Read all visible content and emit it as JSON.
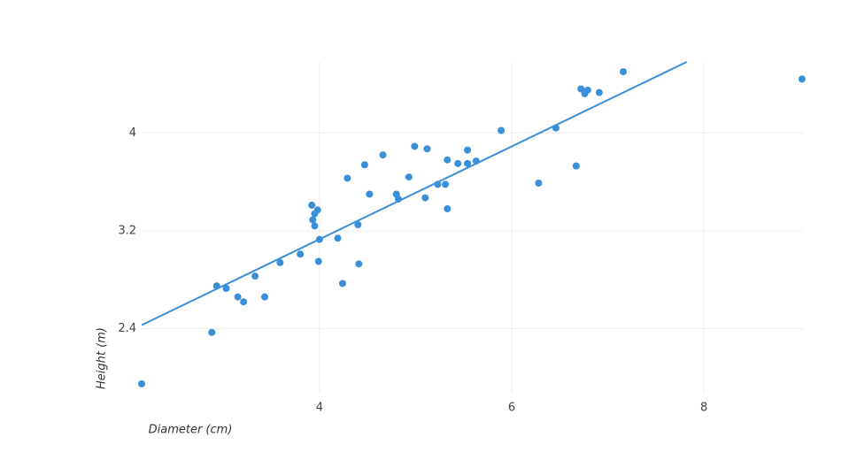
{
  "chart_data": {
    "type": "scatter",
    "x_label": "Diameter (cm)",
    "y_label": "Height (m)",
    "xlim": [
      2.15,
      9.03
    ],
    "ylim": [
      1.87,
      4.58
    ],
    "xticks": [
      4,
      6,
      8
    ],
    "yticks": [
      2.4,
      3.2,
      4
    ],
    "grid": true,
    "series": [
      {
        "color": "#3a8fd9",
        "mode": "markers",
        "x": [
          2.15,
          2.88,
          2.93,
          3.03,
          3.15,
          3.21,
          3.33,
          3.43,
          3.59,
          3.8,
          3.92,
          3.95,
          3.93,
          3.98,
          3.95,
          3.99,
          4.0,
          4.19,
          4.24,
          4.29,
          4.4,
          4.41,
          4.47,
          4.52,
          4.66,
          4.8,
          4.82,
          4.93,
          4.99,
          5.1,
          5.12,
          5.23,
          5.31,
          5.33,
          5.33,
          5.44,
          5.54,
          5.54,
          5.63,
          5.89,
          6.28,
          6.46,
          6.67,
          6.72,
          6.76,
          6.79,
          6.91,
          7.16,
          9.02
        ],
        "y": [
          1.95,
          2.37,
          2.75,
          2.73,
          2.66,
          2.62,
          2.83,
          2.66,
          2.94,
          3.01,
          3.41,
          3.34,
          3.29,
          3.37,
          3.24,
          2.95,
          3.13,
          3.14,
          2.77,
          3.63,
          3.25,
          2.93,
          3.74,
          3.5,
          3.82,
          3.5,
          3.46,
          3.64,
          3.89,
          3.47,
          3.87,
          3.58,
          3.58,
          3.78,
          3.38,
          3.75,
          3.86,
          3.75,
          3.77,
          4.02,
          3.59,
          4.04,
          3.73,
          4.36,
          4.32,
          4.35,
          4.33,
          4.5,
          4.44
        ]
      },
      {
        "color": "#3a8fd9",
        "mode": "lines",
        "x": [
          2.15,
          7.82
        ],
        "y": [
          2.43,
          4.58
        ]
      }
    ]
  }
}
